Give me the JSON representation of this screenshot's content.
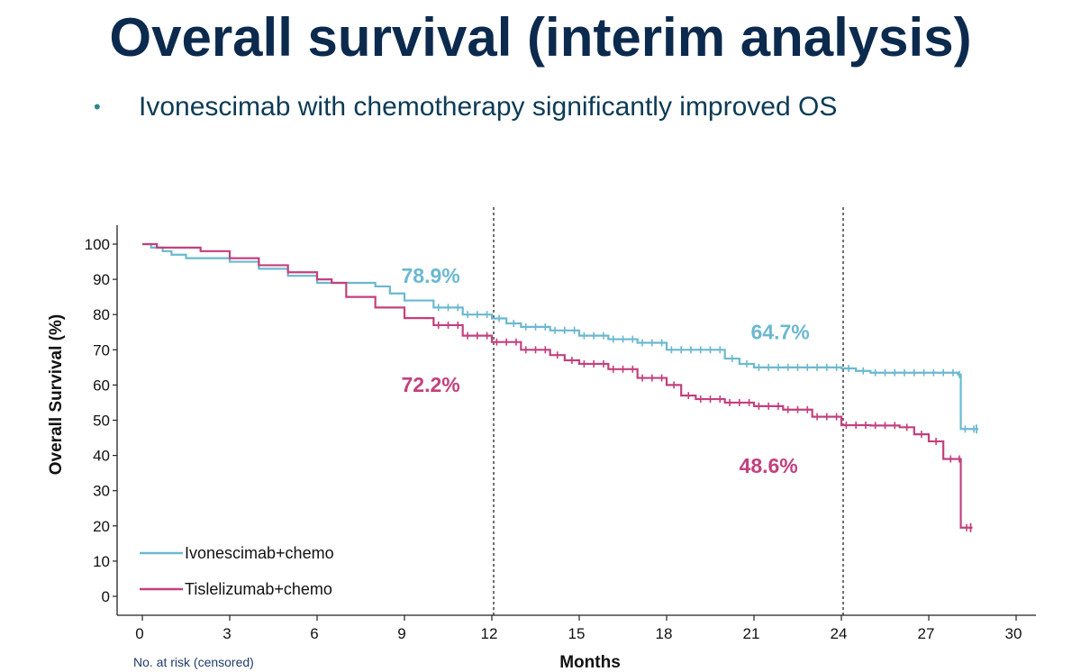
{
  "slide": {
    "title": "Overall survival (interim analysis)",
    "bullet": "Ivonescimab with chemotherapy significantly improved OS"
  },
  "chart_data": {
    "type": "line",
    "xlabel": "Months",
    "ylabel": "Overall Survival (%)",
    "xlim": [
      0,
      30
    ],
    "ylim": [
      0,
      100
    ],
    "xticks": [
      0,
      3,
      6,
      9,
      12,
      15,
      18,
      21,
      24,
      27,
      30
    ],
    "yticks": [
      0,
      10,
      20,
      30,
      40,
      50,
      60,
      70,
      80,
      90,
      100
    ],
    "reference_lines_x": [
      12,
      24
    ],
    "legend_placement": "bottom-left",
    "risk_table_label": "No. at risk (censored)",
    "series": [
      {
        "name": "Ivonescimab+chemo",
        "color": "#6bb8d0",
        "x": [
          0,
          0.3,
          0.7,
          1.0,
          1.5,
          3.0,
          4.0,
          5.0,
          6.0,
          7.0,
          8.0,
          8.5,
          9.0,
          10.0,
          11.0,
          12.0,
          12.5,
          13.0,
          14.0,
          15.0,
          16.0,
          17.0,
          18.0,
          19.0,
          20.0,
          20.5,
          21.0,
          22.0,
          23.0,
          24.0,
          24.5,
          25.0,
          26.0,
          27.0,
          28.0,
          28.1,
          28.7
        ],
        "y": [
          100,
          99,
          98,
          97,
          96,
          95,
          93,
          91,
          89,
          89,
          88,
          86,
          84,
          82,
          80,
          78.9,
          77.5,
          76.5,
          75.5,
          74,
          73,
          72,
          70,
          70,
          67.5,
          66,
          65,
          65,
          65,
          64.7,
          64,
          63.5,
          63.5,
          63.5,
          63,
          47.5,
          47.5
        ]
      },
      {
        "name": "Tislelizumab+chemo",
        "color": "#c2407e",
        "x": [
          0,
          0.5,
          1.0,
          2.0,
          3.0,
          4.0,
          5.0,
          6.0,
          6.5,
          7.0,
          8.0,
          9.0,
          10.0,
          11.0,
          12.0,
          13.0,
          14.0,
          14.5,
          15.0,
          16.0,
          17.0,
          18.0,
          18.5,
          19.0,
          20.0,
          21.0,
          22.0,
          23.0,
          24.0,
          25.0,
          26.0,
          26.5,
          27.0,
          27.5,
          28.0,
          28.1,
          28.5
        ],
        "y": [
          100,
          99,
          99,
          98,
          96,
          94,
          92,
          90,
          89,
          85,
          82,
          79,
          77,
          74,
          72.2,
          70,
          68.5,
          67,
          66,
          64.5,
          62,
          60,
          57,
          56,
          55,
          54,
          53,
          51,
          48.6,
          48.5,
          48,
          46,
          44,
          39,
          39,
          19.5,
          19.5
        ]
      }
    ],
    "annotations": [
      {
        "text": "78.9%",
        "x": 9.9,
        "y": 89,
        "color": "#6bb8d0"
      },
      {
        "text": "72.2%",
        "x": 9.9,
        "y": 58,
        "color": "#c2407e"
      },
      {
        "text": "64.7%",
        "x": 21.9,
        "y": 73,
        "color": "#6bb8d0"
      },
      {
        "text": "48.6%",
        "x": 21.5,
        "y": 35,
        "color": "#c2407e"
      }
    ]
  }
}
